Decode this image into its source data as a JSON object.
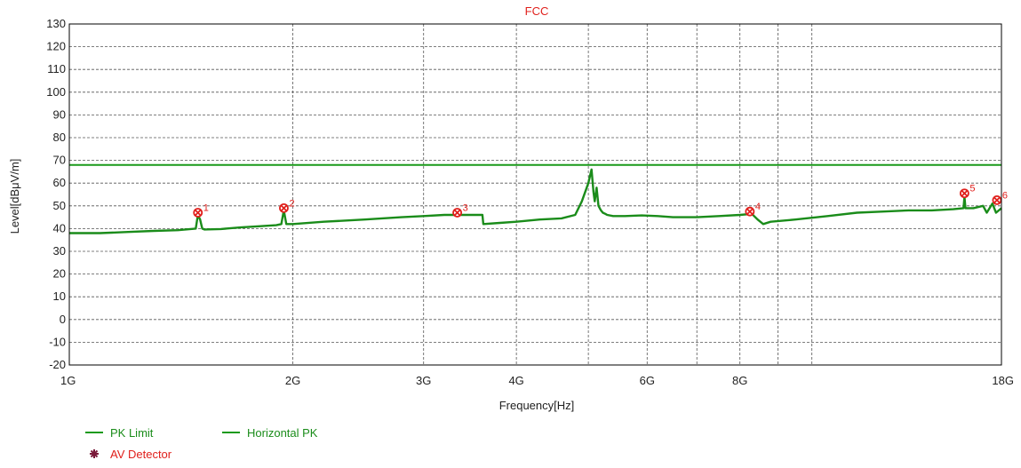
{
  "chart_data": {
    "type": "line",
    "title": "FCC",
    "xlabel": "Frequency[Hz]",
    "ylabel": "Level[dBμV/m]",
    "x_scale": "log",
    "x_range_hz": [
      1000000000,
      18000000000
    ],
    "x_ticks": [
      {
        "hz": 1000000000,
        "label": "1G",
        "labeled": true
      },
      {
        "hz": 2000000000,
        "label": "2G",
        "labeled": true
      },
      {
        "hz": 3000000000,
        "label": "3G",
        "labeled": true
      },
      {
        "hz": 4000000000,
        "label": "4G",
        "labeled": true
      },
      {
        "hz": 5000000000,
        "label": "",
        "labeled": false
      },
      {
        "hz": 6000000000,
        "label": "6G",
        "labeled": true
      },
      {
        "hz": 7000000000,
        "label": "",
        "labeled": false
      },
      {
        "hz": 8000000000,
        "label": "8G",
        "labeled": true
      },
      {
        "hz": 9000000000,
        "label": "",
        "labeled": false
      },
      {
        "hz": 10000000000,
        "label": "",
        "labeled": false
      },
      {
        "hz": 18000000000,
        "label": "18G",
        "labeled": true
      }
    ],
    "ylim": [
      -20,
      130
    ],
    "y_ticks": [
      -20,
      -10,
      0,
      10,
      20,
      30,
      40,
      50,
      60,
      70,
      80,
      90,
      100,
      110,
      120,
      130
    ],
    "grid": true,
    "colors": {
      "title": "#e0201c",
      "limit": "#1a9a1a",
      "trace": "#1a8c1a",
      "marker": "#e0201c",
      "av_detector": "#7a1a3a"
    },
    "series": [
      {
        "name": "PK Limit",
        "type": "limit",
        "level": 68
      },
      {
        "name": "Horizontal PK",
        "type": "trace",
        "x": [
          1000000000,
          1100000000,
          1200000000,
          1300000000,
          1400000000,
          1480000000,
          1490000000,
          1500000000,
          1510000000,
          1520000000,
          1600000000,
          1700000000,
          1800000000,
          1900000000,
          1930000000,
          1945000000,
          1960000000,
          2000000000,
          2200000000,
          2500000000,
          2800000000,
          3000000000,
          3200000000,
          3400000000,
          3600000000,
          3610000000,
          3800000000,
          4000000000,
          4300000000,
          4600000000,
          4800000000,
          4900000000,
          5000000000,
          5050000000,
          5080000000,
          5100000000,
          5130000000,
          5160000000,
          5200000000,
          5230000000,
          5270000000,
          5300000000,
          5400000000,
          5600000000,
          5900000000,
          6200000000,
          6500000000,
          7000000000,
          7500000000,
          8000000000,
          8300000000,
          8450000000,
          8600000000,
          8800000000,
          9500000000,
          10500000000,
          11500000000,
          12500000000,
          13500000000,
          14500000000,
          15500000000,
          16000000000,
          16050000000,
          16100000000,
          16500000000,
          17000000000,
          17200000000,
          17500000000,
          17700000000,
          18000000000
        ],
        "y": [
          38,
          38,
          38.5,
          39,
          39.3,
          40,
          46,
          44,
          40,
          39.6,
          39.8,
          40.5,
          41,
          41.5,
          42,
          48,
          42,
          42,
          43,
          44,
          45,
          45.5,
          46,
          46,
          46,
          42,
          42.5,
          43,
          44,
          44.5,
          46,
          52,
          60,
          66,
          56,
          52,
          58,
          50,
          48,
          47,
          46.5,
          46,
          45.5,
          45.5,
          45.8,
          45.5,
          45,
          45,
          45.5,
          46,
          46.5,
          44,
          42,
          43,
          44,
          45.5,
          47,
          47.5,
          48,
          48,
          48.5,
          49,
          54,
          49,
          49,
          50,
          47,
          51,
          47,
          49
        ]
      },
      {
        "name": "AV Detector",
        "type": "marker"
      }
    ],
    "markers": [
      {
        "id": "1",
        "x": 1490000000,
        "y": 47
      },
      {
        "id": "2",
        "x": 1945000000,
        "y": 49
      },
      {
        "id": "3",
        "x": 3330000000,
        "y": 47
      },
      {
        "id": "4",
        "x": 8250000000,
        "y": 47.5
      },
      {
        "id": "5",
        "x": 16050000000,
        "y": 55.5
      },
      {
        "id": "6",
        "x": 17750000000,
        "y": 52.5
      }
    ],
    "legend": [
      {
        "name": "PK Limit",
        "symbol": "line",
        "color": "#1a9a1a",
        "text_color": "#1a8c1a"
      },
      {
        "name": "Horizontal PK",
        "symbol": "line",
        "color": "#1a9a1a",
        "text_color": "#1a8c1a"
      },
      {
        "name": "AV Detector",
        "symbol": "star",
        "color": "#7a1a3a",
        "text_color": "#e0201c"
      }
    ],
    "legend_position": "bottom-left"
  }
}
